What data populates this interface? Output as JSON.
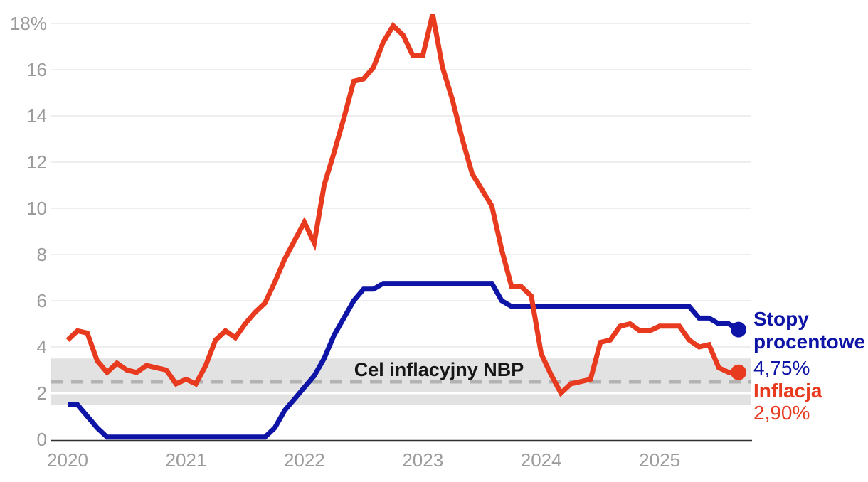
{
  "chart_data": {
    "type": "line",
    "title": "",
    "months_start": "2020-01",
    "x_axis_years": [
      "2020",
      "2021",
      "2022",
      "2023",
      "2024",
      "2025"
    ],
    "y_ticks": [
      0,
      2,
      4,
      6,
      8,
      10,
      12,
      14,
      16,
      18
    ],
    "y_tick_labels": [
      "0",
      "2",
      "4",
      "6",
      "8",
      "10",
      "12",
      "14",
      "16",
      "18%"
    ],
    "ylim": [
      0,
      18.5
    ],
    "grid": true,
    "legend_position": "right-of-last-point",
    "series": [
      {
        "name": "Stopy procentowe",
        "color": "#0e14a6",
        "values": [
          1.5,
          1.5,
          1.0,
          0.5,
          0.1,
          0.1,
          0.1,
          0.1,
          0.1,
          0.1,
          0.1,
          0.1,
          0.1,
          0.1,
          0.1,
          0.1,
          0.1,
          0.1,
          0.1,
          0.1,
          0.1,
          0.5,
          1.25,
          1.75,
          2.25,
          2.75,
          3.5,
          4.5,
          5.25,
          6.0,
          6.5,
          6.5,
          6.75,
          6.75,
          6.75,
          6.75,
          6.75,
          6.75,
          6.75,
          6.75,
          6.75,
          6.75,
          6.75,
          6.75,
          6.0,
          5.75,
          5.75,
          5.75,
          5.75,
          5.75,
          5.75,
          5.75,
          5.75,
          5.75,
          5.75,
          5.75,
          5.75,
          5.75,
          5.75,
          5.75,
          5.75,
          5.75,
          5.75,
          5.75,
          5.25,
          5.25,
          5.0,
          5.0,
          4.75
        ]
      },
      {
        "name": "Inflacja",
        "color": "#e83a1e",
        "values": [
          4.3,
          4.7,
          4.6,
          3.4,
          2.9,
          3.3,
          3.0,
          2.9,
          3.2,
          3.1,
          3.0,
          2.4,
          2.6,
          2.4,
          3.2,
          4.3,
          4.7,
          4.4,
          5.0,
          5.5,
          5.9,
          6.8,
          7.8,
          8.6,
          9.4,
          8.5,
          11.0,
          12.4,
          13.9,
          15.5,
          15.6,
          16.1,
          17.2,
          17.9,
          17.5,
          16.6,
          16.6,
          18.4,
          16.1,
          14.7,
          13.0,
          11.5,
          10.8,
          10.1,
          8.2,
          6.6,
          6.6,
          6.2,
          3.7,
          2.8,
          2.0,
          2.4,
          2.5,
          2.6,
          4.2,
          4.3,
          4.9,
          5.0,
          4.7,
          4.7,
          4.9,
          4.9,
          4.9,
          4.3,
          4.0,
          4.1,
          3.1,
          2.9,
          2.9
        ]
      }
    ],
    "target_band": {
      "label": "Cel inflacyjny NBP",
      "center": 2.5,
      "low": 1.5,
      "high": 3.5,
      "band_color": "#e2e2e2",
      "dash_color": "#b3b3b3"
    },
    "legend": {
      "rates_label": "Stopy procentowe",
      "rates_value": "4,75%",
      "inflation_label": "Inflacja",
      "inflation_value": "2,90%"
    },
    "colors": {
      "rates": "#0e14a6",
      "inflation": "#e83a1e",
      "gridline": "#e8e8e8",
      "axis": "#2f2f2f",
      "tick_text": "#9b9b9b",
      "band_stripe": "#ffffff"
    }
  }
}
